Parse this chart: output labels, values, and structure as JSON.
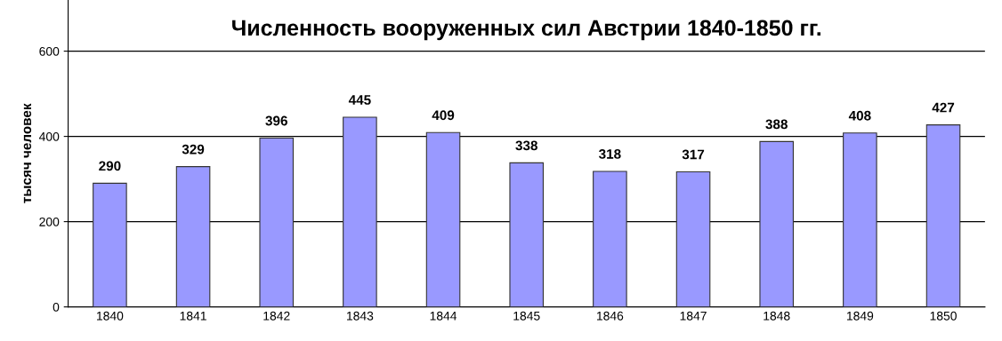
{
  "chart_data": {
    "type": "bar",
    "title": "Численность вооруженных сил Австрии 1840-1850 гг.",
    "ylabel": "тысяч человек",
    "categories": [
      "1840",
      "1841",
      "1842",
      "1843",
      "1844",
      "1845",
      "1846",
      "1847",
      "1848",
      "1849",
      "1850"
    ],
    "values": [
      290,
      329,
      396,
      445,
      409,
      338,
      318,
      317,
      388,
      408,
      427
    ],
    "color": "#9999ff",
    "ylim": [
      0,
      720
    ],
    "yticks": [
      0,
      200,
      400,
      600
    ],
    "grid": "y",
    "data_labels": true
  }
}
